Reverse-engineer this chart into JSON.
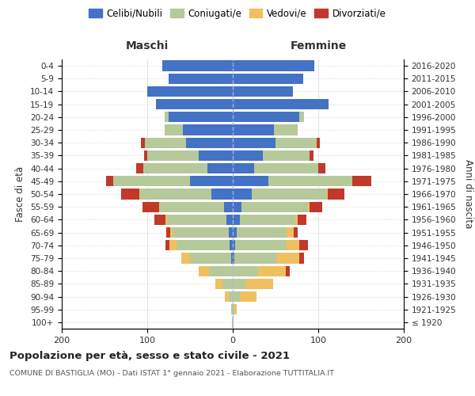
{
  "age_groups": [
    "100+",
    "95-99",
    "90-94",
    "85-89",
    "80-84",
    "75-79",
    "70-74",
    "65-69",
    "60-64",
    "55-59",
    "50-54",
    "45-49",
    "40-44",
    "35-39",
    "30-34",
    "25-29",
    "20-24",
    "15-19",
    "10-14",
    "5-9",
    "0-4"
  ],
  "birth_years": [
    "≤ 1920",
    "1921-1925",
    "1926-1930",
    "1931-1935",
    "1936-1940",
    "1941-1945",
    "1946-1950",
    "1951-1955",
    "1956-1960",
    "1961-1965",
    "1966-1970",
    "1971-1975",
    "1976-1980",
    "1981-1985",
    "1986-1990",
    "1991-1995",
    "1996-2000",
    "2001-2005",
    "2006-2010",
    "2011-2015",
    "2016-2020"
  ],
  "maschi": {
    "celibi": [
      0,
      0,
      0,
      0,
      0,
      2,
      4,
      5,
      7,
      10,
      25,
      50,
      30,
      40,
      55,
      58,
      75,
      90,
      100,
      75,
      82
    ],
    "coniugati": [
      1,
      2,
      5,
      12,
      28,
      48,
      62,
      65,
      70,
      75,
      83,
      90,
      75,
      60,
      48,
      22,
      5,
      0,
      0,
      0,
      0
    ],
    "vedovi": [
      0,
      0,
      4,
      8,
      12,
      10,
      8,
      3,
      2,
      1,
      1,
      0,
      0,
      0,
      0,
      0,
      0,
      0,
      0,
      0,
      0
    ],
    "divorziati": [
      0,
      0,
      0,
      0,
      0,
      0,
      5,
      5,
      13,
      20,
      22,
      8,
      8,
      4,
      4,
      0,
      0,
      0,
      0,
      0,
      0
    ]
  },
  "femmine": {
    "nubili": [
      0,
      0,
      0,
      0,
      0,
      2,
      3,
      5,
      8,
      10,
      22,
      42,
      25,
      35,
      50,
      48,
      78,
      112,
      70,
      82,
      95
    ],
    "coniugate": [
      1,
      2,
      8,
      15,
      30,
      50,
      60,
      58,
      65,
      78,
      88,
      98,
      75,
      55,
      48,
      28,
      5,
      0,
      0,
      0,
      0
    ],
    "vedove": [
      0,
      3,
      20,
      32,
      32,
      26,
      15,
      8,
      3,
      2,
      1,
      0,
      0,
      0,
      0,
      0,
      0,
      0,
      0,
      0,
      0
    ],
    "divorziate": [
      0,
      0,
      0,
      0,
      5,
      5,
      10,
      5,
      10,
      15,
      20,
      22,
      8,
      4,
      4,
      0,
      0,
      0,
      0,
      0,
      0
    ]
  },
  "colors": {
    "celibi": "#4472c4",
    "coniugati": "#b5c99a",
    "vedovi": "#f0c060",
    "divorziati": "#c0392b"
  },
  "xlim": 200,
  "title": "Popolazione per età, sesso e stato civile - 2021",
  "subtitle": "COMUNE DI BASTIGLIA (MO) - Dati ISTAT 1° gennaio 2021 - Elaborazione TUTTITALIA.IT",
  "ylabel_left": "Fasce di età",
  "ylabel_right": "Anni di nascita",
  "legend_labels": [
    "Celibi/Nubili",
    "Coniugati/e",
    "Vedovi/e",
    "Divorziati/e"
  ],
  "maschi_label": "Maschi",
  "femmine_label": "Femmine",
  "bg_color": "#ffffff",
  "grid_color": "#cccccc",
  "text_color": "#333333"
}
